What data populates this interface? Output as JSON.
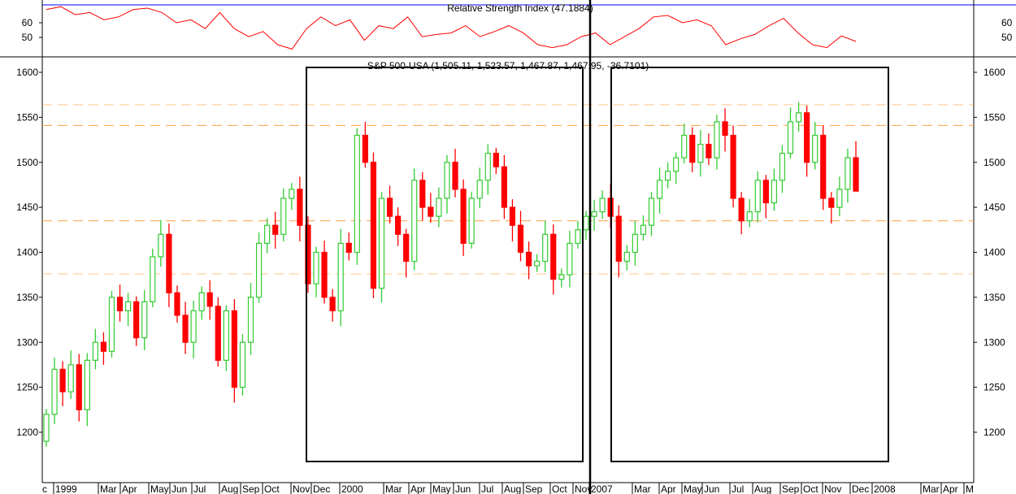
{
  "chart_data": {
    "type": "candlestick",
    "title": "S&P 500-USA (1,505.11, 1,523.57, 1,467.87, 1,467.95, -36.7101)",
    "last_candle": {
      "open": 1505.11,
      "high": 1523.57,
      "low": 1467.87,
      "close": 1467.95,
      "change": -36.7101
    },
    "ylim": [
      1165,
      1615
    ],
    "y_ticks": [
      1200,
      1250,
      1300,
      1350,
      1400,
      1450,
      1500,
      1550,
      1600
    ],
    "x_tick_labels": [
      "c",
      "1999",
      "Mar",
      "Apr",
      "May",
      "Jun",
      "Jul",
      "Aug",
      "Sep",
      "Oct",
      "Nov",
      "Dec",
      "2000",
      "Mar",
      "Apr",
      "May",
      "Jun",
      "Jul",
      "Aug",
      "Sep",
      "Oct",
      "Nov",
      "2007",
      "Mar",
      "Apr",
      "May",
      "Jun",
      "Jul",
      "Aug",
      "Sep",
      "Oct",
      "Nov",
      "Dec",
      "2008",
      "Mar",
      "Apr",
      "M"
    ],
    "closes": [
      1220,
      1270,
      1245,
      1275,
      1225,
      1280,
      1300,
      1290,
      1350,
      1335,
      1345,
      1305,
      1345,
      1395,
      1420,
      1355,
      1330,
      1300,
      1335,
      1355,
      1340,
      1280,
      1335,
      1250,
      1300,
      1350,
      1410,
      1430,
      1420,
      1460,
      1470,
      1430,
      1365,
      1400,
      1350,
      1335,
      1410,
      1400,
      1530,
      1500,
      1360,
      1460,
      1440,
      1420,
      1390,
      1480,
      1450,
      1440,
      1460,
      1500,
      1470,
      1410,
      1460,
      1480,
      1510,
      1495,
      1450,
      1430,
      1400,
      1385,
      1390,
      1420,
      1370,
      1375,
      1410,
      1425,
      1440,
      1445,
      1460,
      1440,
      1390,
      1400,
      1420,
      1430,
      1460,
      1480,
      1490,
      1505,
      1530,
      1500,
      1520,
      1505,
      1545,
      1530,
      1460,
      1435,
      1445,
      1480,
      1455,
      1480,
      1510,
      1545,
      1555,
      1500,
      1530,
      1460,
      1450,
      1470,
      1505.11,
      1467.95
    ],
    "horizontal_levels": [
      1564,
      1541,
      1435,
      1376
    ],
    "colors": {
      "up": "#33cc33",
      "down": "#ff0000",
      "levels": "#ffa040",
      "rsi": "#ff0000",
      "rsi_ref": "#0000ff"
    },
    "rsi": {
      "title": "Relative Strength Index (47.1884)",
      "value": 47.1884,
      "y_ticks": [
        50,
        60
      ],
      "reference_level": 70,
      "values": [
        69,
        71,
        65.5,
        67,
        62,
        64,
        69,
        70,
        67,
        60,
        62,
        56,
        67,
        56,
        50.5,
        54,
        45,
        42,
        56,
        64,
        58,
        62,
        48,
        58,
        56,
        64,
        50.5,
        52,
        53,
        58,
        50.5,
        54,
        58,
        53,
        45,
        43,
        45,
        50.5,
        53,
        45,
        50.5,
        56,
        64,
        65,
        60,
        62,
        58,
        45,
        49,
        52,
        58,
        63,
        53,
        45,
        43,
        51,
        47.2
      ]
    }
  }
}
